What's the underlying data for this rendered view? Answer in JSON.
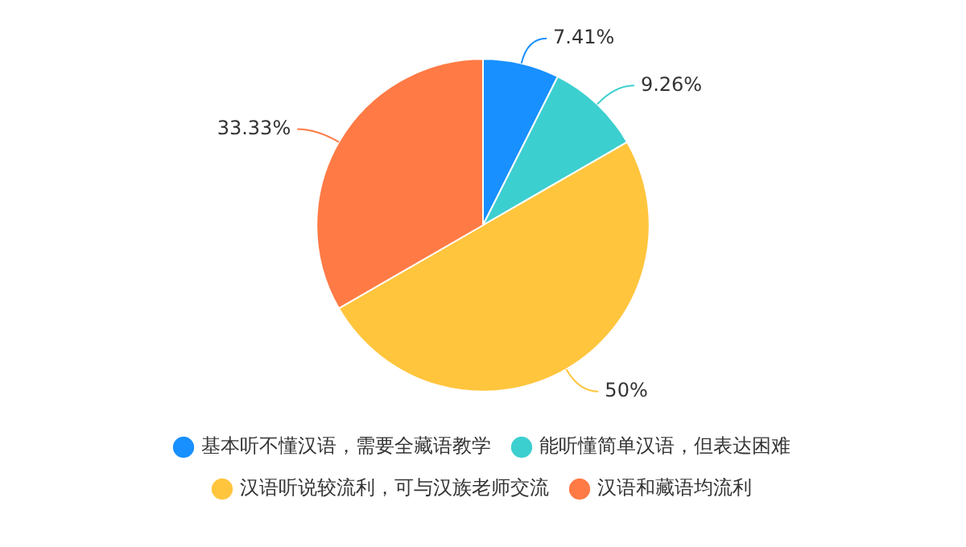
{
  "chart_data": {
    "type": "pie",
    "categories": [
      "基本听不懂汉语，需要全藏语教学",
      "能听懂简单汉语，但表达困难",
      "汉语听说较流利，可与汉族老师交流",
      "汉语和藏语均流利"
    ],
    "values": [
      7.41,
      9.26,
      50,
      33.33
    ],
    "colors": [
      "#1890ff",
      "#3ccfcf",
      "#ffc53d",
      "#ff7a45"
    ],
    "value_labels": [
      "7.41%",
      "9.26%",
      "50%",
      "33.33%"
    ],
    "legend": "bottom"
  }
}
